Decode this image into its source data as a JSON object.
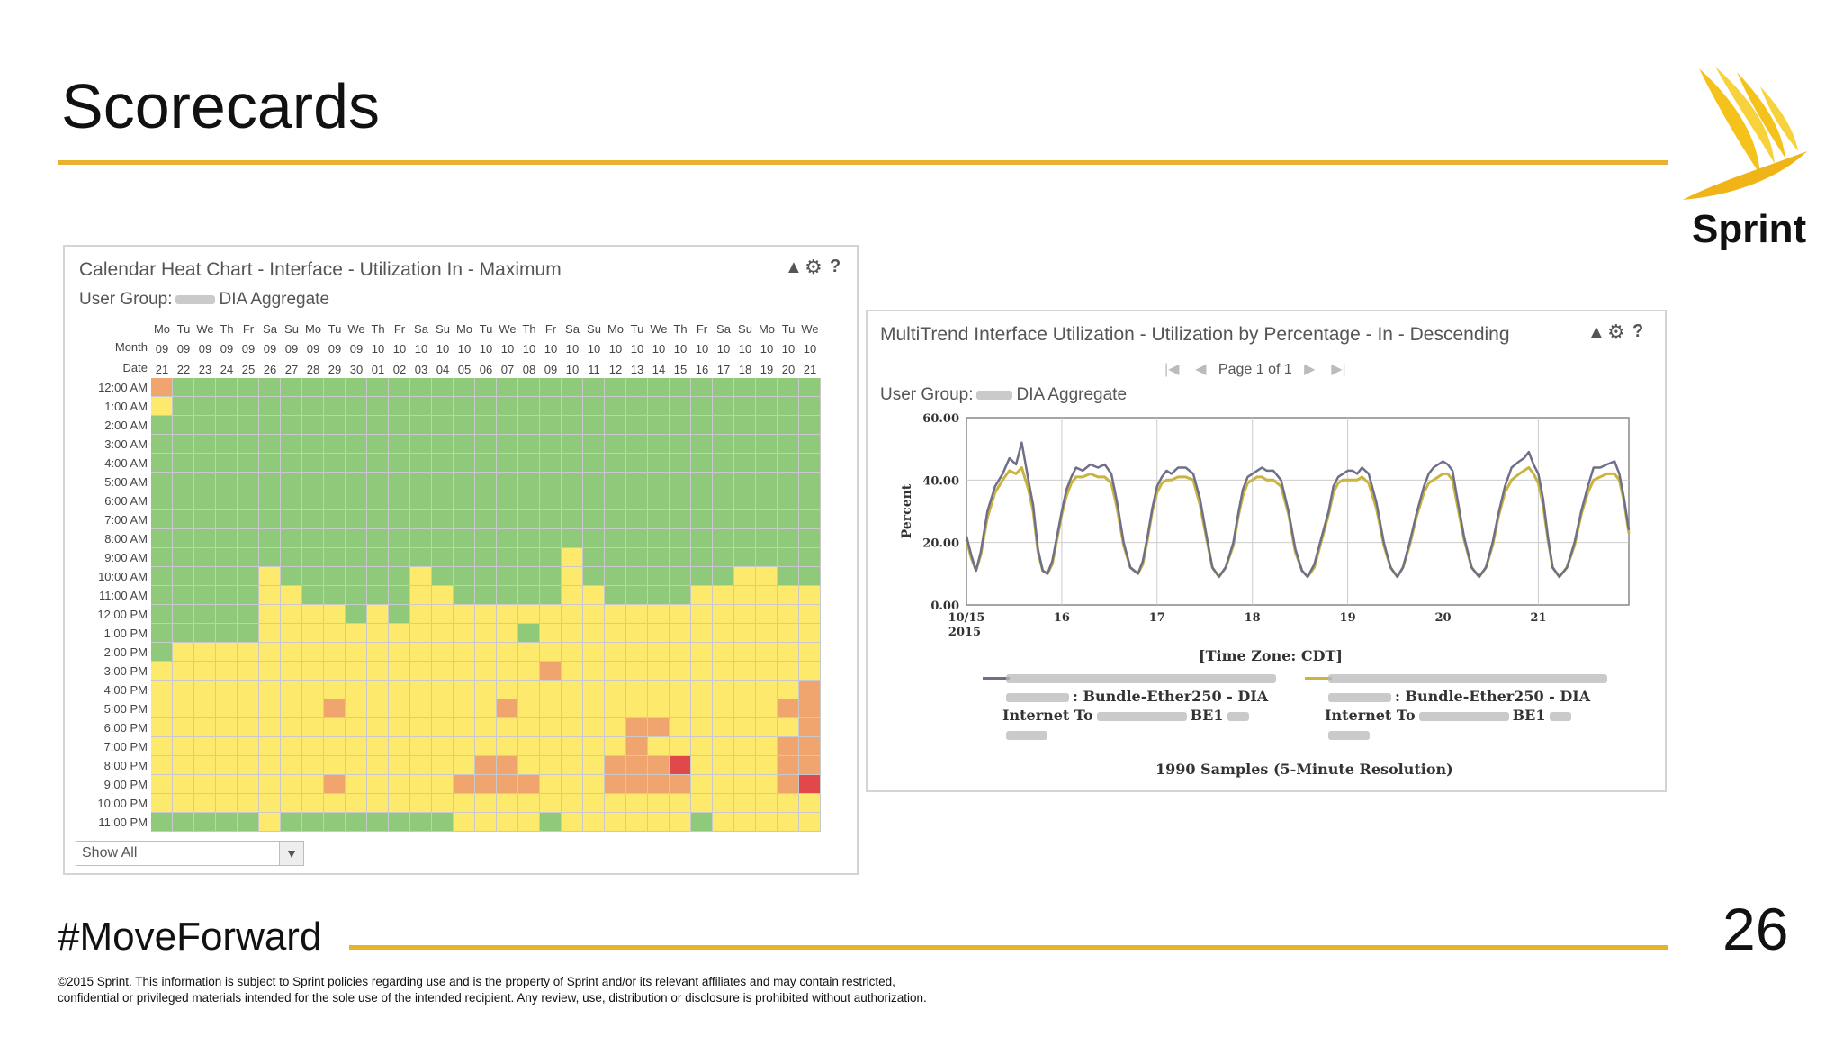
{
  "slide": {
    "title": "Scorecards",
    "hashtag": "#MoveForward",
    "page_number": "26",
    "logo_text": "Sprint",
    "legal_line1": "©2015 Sprint. This information is subject to Sprint policies regarding use and is the property of Sprint and/or its relevant affiliates and may contain restricted,",
    "legal_line2": "confidential or privileged materials intended for the sole use of the intended recipient. Any review, use, distribution or disclosure is prohibited without authorization.",
    "accent_color": "#e8b22f"
  },
  "heat_panel": {
    "title": "Calendar Heat Chart - Interface - Utilization In - Maximum",
    "user_group_label": "User Group:",
    "user_group_value": "DIA Aggregate",
    "header_month_label": "Month",
    "header_date_label": "Date",
    "days": [
      "Mo",
      "Tu",
      "We",
      "Th",
      "Fr",
      "Sa",
      "Su",
      "Mo",
      "Tu",
      "We",
      "Th",
      "Fr",
      "Sa",
      "Su",
      "Mo",
      "Tu",
      "We",
      "Th",
      "Fr",
      "Sa",
      "Su",
      "Mo",
      "Tu",
      "We",
      "Th",
      "Fr",
      "Sa",
      "Su",
      "Mo",
      "Tu",
      "We"
    ],
    "months": [
      "09",
      "09",
      "09",
      "09",
      "09",
      "09",
      "09",
      "09",
      "09",
      "09",
      "10",
      "10",
      "10",
      "10",
      "10",
      "10",
      "10",
      "10",
      "10",
      "10",
      "10",
      "10",
      "10",
      "10",
      "10",
      "10",
      "10",
      "10",
      "10",
      "10",
      "10"
    ],
    "dates": [
      "21",
      "22",
      "23",
      "24",
      "25",
      "26",
      "27",
      "28",
      "29",
      "30",
      "01",
      "02",
      "03",
      "04",
      "05",
      "06",
      "07",
      "08",
      "09",
      "10",
      "11",
      "12",
      "13",
      "14",
      "15",
      "16",
      "17",
      "18",
      "19",
      "20",
      "21"
    ],
    "hours": [
      "12:00 AM",
      "1:00 AM",
      "2:00 AM",
      "3:00 AM",
      "4:00 AM",
      "5:00 AM",
      "6:00 AM",
      "7:00 AM",
      "8:00 AM",
      "9:00 AM",
      "10:00 AM",
      "11:00 AM",
      "12:00 PM",
      "1:00 PM",
      "2:00 PM",
      "3:00 PM",
      "4:00 PM",
      "5:00 PM",
      "6:00 PM",
      "7:00 PM",
      "8:00 PM",
      "9:00 PM",
      "10:00 PM",
      "11:00 PM"
    ],
    "select_value": "Show All",
    "colors": {
      "G": "#8fc97a",
      "Y": "#fde96c",
      "O": "#f0a56f",
      "R": "#e0484a"
    },
    "grid": [
      "OGGGGGGGGGGGGGGGGGGGGGGGGGGGGGG",
      "YGGGGGGGGGGGGGGGGGGGGGGGGGGGGGG",
      "GGGGGGGGGGGGGGGGGGGGGGGGGGGGGGG",
      "GGGGGGGGGGGGGGGGGGGGGGGGGGGGGGG",
      "GGGGGGGGGGGGGGGGGGGGGGGGGGGGGGG",
      "GGGGGGGGGGGGGGGGGGGGGGGGGGGGGGG",
      "GGGGGGGGGGGGGGGGGGGGGGGGGGGGGGG",
      "GGGGGGGGGGGGGGGGGGGGGGGGGGGGGGG",
      "GGGGGGGGGGGGGGGGGGGGGGGGGGGGGGG",
      "GGGGGGGGGGGGGGGGGGGYGGGGGGGGGGG",
      "GGGGGYGGGGGGYGGGGGGYGGGGGGGYYGG",
      "GGGGGYYGGGGGYYGGGGGYYGGGGYYYYYY",
      "GGGGGYYYYGYGYYYYYYYYYYYYYYYYYYY",
      "GGGGGYYYYYYYYYYYYGYYYYYYYYYYYYY",
      "GYYYYYYYYYYYYYYYYYYYYYYYYYYYYYY",
      "YYYYYYYYYYYYYYYYYYOYYYYYYYYYYYY",
      "YYYYYYYYYYYYYYYYYYYYYYYYYYYYYYO",
      "YYYYYYYYOYYYYYYYOYYYYYYYYYYYYOO",
      "YYYYYYYYYYYYYYYYYYYYYYOOYYYYYYO",
      "YYYYYYYYYYYYYYYYYYYYYYOYYYYYYOO",
      "YYYYYYYYYYYYYYYOOYYYYOOORYYYYOO",
      "YYYYYYYYOYYYYYOOOOYYYOOOOYYYYOR",
      "YYYYYYYYYYYYYYYYYYYYYYYYYYYYYYY",
      "GGGGGYGGGGGGGGYYYYGYYYYYYGYYYYY"
    ]
  },
  "trend_panel": {
    "title": "MultiTrend Interface Utilization - Utilization by Percentage - In - Descending",
    "pager_text": "Page 1 of 1",
    "user_group_label": "User Group:",
    "user_group_value": "DIA Aggregate",
    "samples_text": "1990 Samples (5-Minute Resolution)",
    "legend": [
      {
        "line1": ": Bundle-Ether250 - DIA",
        "line2": "Internet To",
        "line3": "BE1",
        "color": "#6f6f8a"
      },
      {
        "line1": ": Bundle-Ether250 - DIA",
        "line2": "Internet To",
        "line3": "BE1",
        "color": "#c9b440"
      }
    ],
    "chart_data": {
      "type": "line",
      "ylabel": "Percent",
      "xlabel": "[Time Zone: CDT]",
      "ylim": [
        0,
        60
      ],
      "xlim": [
        15,
        21.95
      ],
      "yticks": [
        "0.00",
        "20.00",
        "40.00",
        "60.00"
      ],
      "xticks": [
        {
          "value": 15,
          "label": "10/15",
          "sub": "2015"
        },
        {
          "value": 16,
          "label": "16"
        },
        {
          "value": 17,
          "label": "17"
        },
        {
          "value": 18,
          "label": "18"
        },
        {
          "value": 19,
          "label": "19"
        },
        {
          "value": 20,
          "label": "20"
        },
        {
          "value": 21,
          "label": "21"
        }
      ],
      "grid": true,
      "series": [
        {
          "color": "#6f6f8a",
          "x": [
            15.0,
            15.05,
            15.1,
            15.15,
            15.22,
            15.3,
            15.38,
            15.45,
            15.52,
            15.58,
            15.65,
            15.7,
            15.75,
            15.8,
            15.85,
            15.9,
            15.95,
            16.0,
            16.05,
            16.1,
            16.15,
            16.22,
            16.3,
            16.38,
            16.45,
            16.52,
            16.58,
            16.65,
            16.72,
            16.8,
            16.85,
            16.9,
            16.95,
            17.0,
            17.05,
            17.1,
            17.15,
            17.22,
            17.3,
            17.38,
            17.45,
            17.52,
            17.58,
            17.65,
            17.72,
            17.8,
            17.85,
            17.9,
            17.95,
            18.0,
            18.05,
            18.1,
            18.15,
            18.22,
            18.3,
            18.38,
            18.45,
            18.52,
            18.58,
            18.65,
            18.72,
            18.8,
            18.85,
            18.9,
            18.95,
            19.0,
            19.05,
            19.1,
            19.15,
            19.22,
            19.3,
            19.38,
            19.45,
            19.52,
            19.58,
            19.65,
            19.72,
            19.8,
            19.85,
            19.9,
            19.95,
            20.0,
            20.05,
            20.1,
            20.15,
            20.22,
            20.3,
            20.38,
            20.45,
            20.52,
            20.58,
            20.65,
            20.72,
            20.8,
            20.85,
            20.9,
            20.95,
            21.0,
            21.05,
            21.1,
            21.15,
            21.22,
            21.3,
            21.38,
            21.45,
            21.52,
            21.58,
            21.65,
            21.72,
            21.8,
            21.85,
            21.9,
            21.95
          ],
          "values": [
            22,
            16,
            11,
            17,
            30,
            38,
            42,
            47,
            45,
            52,
            40,
            32,
            18,
            11,
            10,
            14,
            22,
            30,
            37,
            41,
            44,
            43,
            45,
            44,
            45,
            42,
            33,
            20,
            12,
            10,
            14,
            22,
            31,
            38,
            41,
            43,
            42,
            44,
            44,
            42,
            34,
            22,
            12,
            9,
            12,
            20,
            29,
            37,
            41,
            42,
            43,
            44,
            43,
            43,
            40,
            30,
            18,
            11,
            9,
            13,
            21,
            30,
            38,
            41,
            42,
            43,
            43,
            42,
            44,
            42,
            33,
            20,
            12,
            9,
            12,
            20,
            29,
            38,
            42,
            44,
            45,
            46,
            45,
            43,
            34,
            22,
            12,
            9,
            12,
            20,
            29,
            38,
            44,
            46,
            47,
            49,
            45,
            42,
            34,
            22,
            12,
            9,
            12,
            20,
            30,
            38,
            44,
            44,
            45,
            46,
            42,
            34,
            24
          ]
        },
        {
          "color": "#c9b440",
          "x": [
            15.0,
            15.05,
            15.1,
            15.15,
            15.22,
            15.3,
            15.38,
            15.45,
            15.52,
            15.58,
            15.65,
            15.7,
            15.75,
            15.8,
            15.85,
            15.9,
            15.95,
            16.0,
            16.05,
            16.1,
            16.15,
            16.22,
            16.3,
            16.38,
            16.45,
            16.52,
            16.58,
            16.65,
            16.72,
            16.8,
            16.85,
            16.9,
            16.95,
            17.0,
            17.05,
            17.1,
            17.15,
            17.22,
            17.3,
            17.38,
            17.45,
            17.52,
            17.58,
            17.65,
            17.72,
            17.8,
            17.85,
            17.9,
            17.95,
            18.0,
            18.05,
            18.1,
            18.15,
            18.22,
            18.3,
            18.38,
            18.45,
            18.52,
            18.58,
            18.65,
            18.72,
            18.8,
            18.85,
            18.9,
            18.95,
            19.0,
            19.05,
            19.1,
            19.15,
            19.22,
            19.3,
            19.38,
            19.45,
            19.52,
            19.58,
            19.65,
            19.72,
            19.8,
            19.85,
            19.9,
            19.95,
            20.0,
            20.05,
            20.1,
            20.15,
            20.22,
            20.3,
            20.38,
            20.45,
            20.52,
            20.58,
            20.65,
            20.72,
            20.8,
            20.85,
            20.9,
            20.95,
            21.0,
            21.05,
            21.1,
            21.15,
            21.22,
            21.3,
            21.38,
            21.45,
            21.52,
            21.58,
            21.65,
            21.72,
            21.8,
            21.85,
            21.9,
            21.95
          ],
          "values": [
            21,
            15,
            11,
            16,
            28,
            36,
            40,
            43,
            42,
            44,
            37,
            30,
            17,
            11,
            10,
            13,
            21,
            29,
            35,
            39,
            41,
            41,
            42,
            41,
            41,
            39,
            31,
            19,
            12,
            10,
            13,
            21,
            30,
            36,
            39,
            40,
            40,
            41,
            41,
            40,
            32,
            21,
            12,
            9,
            12,
            19,
            28,
            35,
            39,
            40,
            41,
            41,
            40,
            40,
            38,
            29,
            17,
            11,
            9,
            12,
            20,
            29,
            36,
            39,
            40,
            40,
            40,
            40,
            41,
            39,
            31,
            19,
            12,
            9,
            12,
            19,
            28,
            36,
            39,
            40,
            41,
            42,
            42,
            40,
            32,
            21,
            12,
            9,
            12,
            19,
            28,
            36,
            40,
            42,
            43,
            44,
            42,
            39,
            32,
            21,
            12,
            9,
            12,
            19,
            29,
            36,
            40,
            41,
            42,
            42,
            40,
            33,
            23
          ]
        }
      ]
    }
  }
}
